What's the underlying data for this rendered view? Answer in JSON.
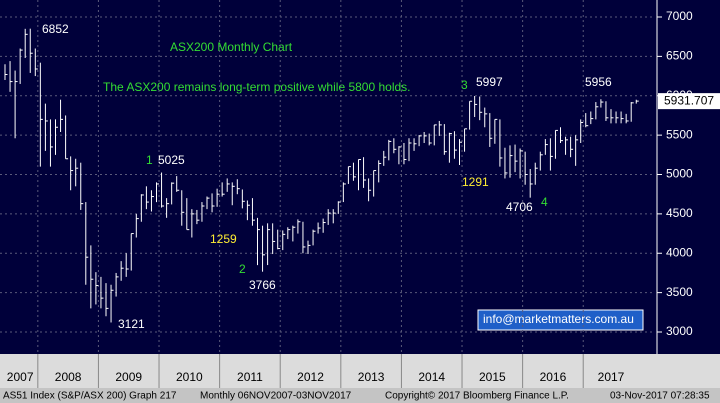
{
  "chart_data": {
    "type": "hlc",
    "title": "ASX200 Monthly Chart",
    "subtitle": "The ASX200 remains long-term positive while 5800 holds.",
    "years": [
      "2007",
      "2008",
      "2009",
      "2010",
      "2011",
      "2012",
      "2013",
      "2014",
      "2015",
      "2016",
      "2017"
    ],
    "year_months": [
      7,
      12,
      12,
      12,
      12,
      12,
      12,
      12,
      12,
      12,
      11
    ],
    "high": [
      6400,
      6440,
      6320,
      6600,
      6850,
      6852,
      6600,
      6420,
      5900,
      5700,
      5700,
      5950,
      5750,
      5230,
      5200,
      5150,
      4650,
      4100,
      3760,
      3700,
      3620,
      3600,
      3750,
      3900,
      4000,
      4250,
      4500,
      4750,
      4850,
      4800,
      4900,
      5025,
      4700,
      4900,
      4980,
      4800,
      4700,
      4560,
      4550,
      4650,
      4720,
      4760,
      4820,
      4900,
      4950,
      4900,
      4940,
      4810,
      4670,
      4700,
      4450,
      4350,
      4380,
      4380,
      4300,
      4290,
      4330,
      4350,
      4430,
      4400,
      4160,
      4300,
      4390,
      4440,
      4560,
      4560,
      4660,
      4900,
      5100,
      5150,
      5190,
      5220,
      4950,
      5050,
      5180,
      5300,
      5440,
      5460,
      5360,
      5400,
      5460,
      5460,
      5500,
      5540,
      5520,
      5630,
      5680,
      5640,
      5530,
      5550,
      5450,
      5580,
      5930,
      5997,
      5990,
      5850,
      5780,
      5700,
      5700,
      5340,
      5370,
      5380,
      5330,
      5290,
      5070,
      5150,
      5290,
      5450,
      5460,
      5560,
      5600,
      5480,
      5480,
      5500,
      5700,
      5780,
      5800,
      5920,
      5956,
      5930,
      5830,
      5800,
      5800,
      5770,
      5920,
      5950
    ],
    "low": [
      6200,
      6050,
      5460,
      6150,
      6480,
      6290,
      6250,
      5100,
      5300,
      5100,
      5250,
      5540,
      5200,
      4800,
      4850,
      4550,
      3600,
      3300,
      3350,
      3300,
      3200,
      3121,
      3450,
      3650,
      3700,
      3780,
      4200,
      4400,
      4560,
      4530,
      4650,
      4580,
      4450,
      4620,
      4780,
      4350,
      4300,
      4200,
      4370,
      4400,
      4560,
      4520,
      4590,
      4720,
      4780,
      4610,
      4750,
      4570,
      4420,
      4350,
      3850,
      3766,
      3850,
      3990,
      4050,
      4040,
      4180,
      4150,
      4250,
      4000,
      3990,
      4100,
      4250,
      4260,
      4360,
      4380,
      4500,
      4650,
      4880,
      4920,
      4800,
      4830,
      4660,
      4720,
      4900,
      5110,
      5180,
      5270,
      5130,
      5130,
      5170,
      5300,
      5360,
      5400,
      5370,
      5370,
      5490,
      5250,
      5150,
      5200,
      5120,
      5290,
      5570,
      5730,
      5690,
      5600,
      5350,
      5390,
      5100,
      4950,
      4960,
      5030,
      4950,
      4870,
      4706,
      4870,
      5050,
      5250,
      5050,
      5200,
      5400,
      5250,
      5220,
      5110,
      5400,
      5600,
      5640,
      5700,
      5850,
      5680,
      5650,
      5650,
      5650,
      5650,
      5670,
      5900
    ],
    "close": [
      6270,
      6180,
      6180,
      6580,
      6780,
      6540,
      6340,
      5700,
      5680,
      5350,
      5600,
      5700,
      5200,
      5050,
      5080,
      4630,
      3950,
      3670,
      3590,
      3430,
      3300,
      3530,
      3700,
      3810,
      3800,
      4250,
      4440,
      4740,
      4650,
      4720,
      4880,
      4600,
      4630,
      4890,
      4800,
      4520,
      4300,
      4500,
      4420,
      4600,
      4700,
      4600,
      4750,
      4750,
      4880,
      4850,
      4820,
      4660,
      4610,
      4420,
      4300,
      3980,
      4300,
      4150,
      4060,
      4240,
      4300,
      4330,
      4400,
      4080,
      4100,
      4280,
      4320,
      4390,
      4510,
      4510,
      4650,
      4880,
      5100,
      4970,
      5190,
      4930,
      4800,
      5050,
      5140,
      5220,
      5420,
      5320,
      5350,
      5190,
      5400,
      5390,
      5490,
      5490,
      5400,
      5630,
      5630,
      5290,
      5520,
      5310,
      5410,
      5580,
      5930,
      5890,
      5790,
      5770,
      5460,
      5700,
      5210,
      5020,
      5240,
      5170,
      5300,
      5000,
      4880,
      5080,
      5250,
      5380,
      5230,
      5560,
      5430,
      5440,
      5320,
      5440,
      5660,
      5620,
      5710,
      5860,
      5920,
      5720,
      5720,
      5720,
      5710,
      5680,
      5910,
      5932
    ],
    "ylim": [
      2746,
      7216
    ],
    "yticks": [
      3000,
      3500,
      4000,
      4500,
      5000,
      5500,
      6000,
      6500,
      7000
    ],
    "last_price": 5931.707,
    "color": "#ffffff",
    "annotations": [
      {
        "text": "6852",
        "color": "#ffffff"
      },
      {
        "text": "1",
        "color": "#33dd33"
      },
      {
        "text": "5025",
        "color": "#ffffff"
      },
      {
        "text": "1259",
        "color": "#ffee33"
      },
      {
        "text": "2",
        "color": "#33dd33"
      },
      {
        "text": "3766",
        "color": "#ffffff"
      },
      {
        "text": "3121",
        "color": "#ffffff"
      },
      {
        "text": "3",
        "color": "#33dd33"
      },
      {
        "text": "5997",
        "color": "#ffffff"
      },
      {
        "text": "1291",
        "color": "#ffee33"
      },
      {
        "text": "4706",
        "color": "#ffffff"
      },
      {
        "text": "4",
        "color": "#33dd33"
      },
      {
        "text": "5956",
        "color": "#ffffff"
      }
    ],
    "contact": "info@marketmatters.com.au",
    "status": [
      "AS51 Index (S&P/ASX 200) Graph 217",
      "Monthly 06NOV2007-03NOV2017",
      "Copyright© 2017 Bloomberg Finance L.P.",
      "03-Nov-2017 07:28:35"
    ]
  }
}
